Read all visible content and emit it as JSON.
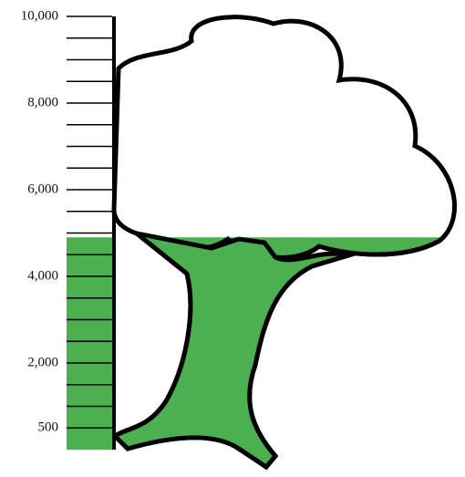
{
  "chart_data": {
    "type": "thermometer",
    "value": 4900,
    "color": "#4caf50",
    "ylim": [
      0,
      10000
    ],
    "yticks": [
      500,
      {
        "value": 2000,
        "label": "2,000"
      },
      {
        "value": 4000,
        "label": "4,000"
      },
      {
        "value": 6000,
        "label": "6,000"
      },
      {
        "value": 8000,
        "label": "8,000"
      },
      {
        "value": 10000,
        "label": "10,000"
      }
    ],
    "minor_yticks": [
      1000,
      1500,
      2500,
      3000,
      3500,
      4500,
      5000,
      5500,
      6500,
      7000,
      7500,
      8500,
      9000,
      9500
    ]
  }
}
